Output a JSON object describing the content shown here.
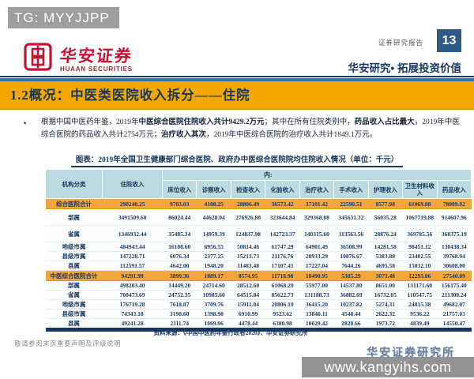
{
  "watermark_badge": "TG: MYYJJPP",
  "header": {
    "logo_cn": "华安证券",
    "logo_en": "HUAAN SECURITIES",
    "report_type": "证券研究报告",
    "page_number": "13",
    "slogan": "华安研究• 拓展投资价值"
  },
  "title_bar": {
    "text": "1.2概况：中医类医院收入拆分——住院"
  },
  "body": {
    "bullet": "•",
    "para": {
      "s1": "根据中国中医药年鉴，2019年",
      "b1": "中医综合医院住院收入共计9429.2万元",
      "s2": "；其中在所有住院类别中，",
      "b2": "药品收入占比最大",
      "s3": "，2019年中医综合医院的药品收入共计2754万元；",
      "b3": "治疗收入其次",
      "s4": "，2019年中医综合医院的治疗收入共计1849.1万元。"
    }
  },
  "table": {
    "title": "图表：2019年全国卫生健康部门综合医院、政府办中医综合医院院均住院收入情况（单位：千元）",
    "col1": "机构分类",
    "col2": "住院收入",
    "group_label": "内:",
    "sub_headers": [
      "床位收入",
      "诊察收入",
      "检查收入",
      "化验收入",
      "治疗收入",
      "手术收入",
      "护理收入",
      "卫生材料收入",
      "药品收入"
    ],
    "rows": [
      {
        "label": "综合医院合计",
        "highlight": true,
        "tall": false,
        "values": [
          "290240.25",
          "9703.03",
          "4108.25",
          "28806.49",
          "36573.42",
          "37101.42",
          "22590.51",
          "8577.98",
          "61069.88",
          "78009.02"
        ]
      },
      {
        "label": "部属",
        "highlight": false,
        "tall": true,
        "values": [
          "3491509.60",
          "86024.44",
          "44628.04",
          "276926.80",
          "323644.84",
          "329368.08",
          "345631.32",
          "56035.28",
          "1067719.88",
          "914607.96"
        ]
      },
      {
        "label": "省属",
        "highlight": false,
        "tall": true,
        "values": [
          "1346932.44",
          "35485.34",
          "14959.39",
          "124837.98",
          "142723.37",
          "140315.60",
          "113563.56",
          "28876.24",
          "369785.56",
          "360375.19"
        ]
      },
      {
        "label": "地级市属",
        "highlight": false,
        "tall": false,
        "values": [
          "484943.44",
          "16108.60",
          "6956.55",
          "50814.46",
          "61747.29",
          "64901.49",
          "36508.99",
          "14281.58",
          "98451.12",
          "130438.34"
        ]
      },
      {
        "label": "县级市属",
        "highlight": false,
        "tall": false,
        "values": [
          "147228.71",
          "6076.34",
          "2377.25",
          "15213.73",
          "21176.76",
          "20933.29",
          "10876.67",
          "5383.88",
          "23402.55",
          "39768.94"
        ]
      },
      {
        "label": "县属",
        "highlight": false,
        "tall": false,
        "values": [
          "112591.57",
          "4642.00",
          "1948.20",
          "11483.48",
          "17107.41",
          "17227.04",
          "7644.26",
          "4695.58",
          "15032.10",
          "30608.00"
        ]
      },
      {
        "label": "中医综合医院合计",
        "highlight": true,
        "tall": false,
        "values": [
          "94291.99",
          "3899.36",
          "1889.17",
          "8574.95",
          "11718.98",
          "18490.95",
          "5385.29",
          "3073.48",
          "12293.86",
          "27540.09"
        ]
      },
      {
        "label": "部属",
        "highlight": false,
        "tall": false,
        "values": [
          "498203.40",
          "14449.20",
          "24714.60",
          "28512.60",
          "61068.20",
          "55977.00",
          "14537.80",
          "8651.00",
          "131171.60",
          "156175.40"
        ]
      },
      {
        "label": "省属",
        "highlight": false,
        "tall": false,
        "values": [
          "700473.69",
          "24752.35",
          "10985.60",
          "64515.84",
          "85622.73",
          "131188.73",
          "36882.69",
          "16732.05",
          "110547.75",
          "211308.24"
        ]
      },
      {
        "label": "地级市属",
        "highlight": false,
        "tall": false,
        "values": [
          "176719.28",
          "7618.87",
          "3709.76",
          "15911.04",
          "20806.10",
          "36415.20",
          "10237.82",
          "5274.31",
          "24815.38",
          "49682.07"
        ]
      },
      {
        "label": "县级市属",
        "highlight": false,
        "tall": false,
        "values": [
          "74343.18",
          "3198.60",
          "1398.98",
          "6910.99",
          "9523.62",
          "13840.11",
          "4548.44",
          "2622.32",
          "9536.22",
          "21757.03"
        ]
      },
      {
        "label": "县属",
        "highlight": false,
        "tall": false,
        "values": [
          "49241.28",
          "2111.74",
          "1069.96",
          "4478.44",
          "6380.98",
          "10029.42",
          "2820.66",
          "1973.72",
          "4839.49",
          "14550.47"
        ]
      }
    ],
    "source": "资料来源：《中国中医药年鉴行政卷2020》、华安证券研究所"
  },
  "footer": {
    "disclaimer": "敬请参阅末页重要声明及评级说明",
    "institute": "华安证券研究所",
    "site": "www.kangyihs.com"
  },
  "colors": {
    "title_bar_orange": "#F5A701",
    "row_highlight_orange": "#F2A63C",
    "navy": "#17375E",
    "table_header_blue": "#BBDBE0",
    "divider_blue": "#2E74B5",
    "badge_gray": "#9E9E9E",
    "logo_red": "#C41230",
    "page_badge_blue": "#2D5A87"
  }
}
